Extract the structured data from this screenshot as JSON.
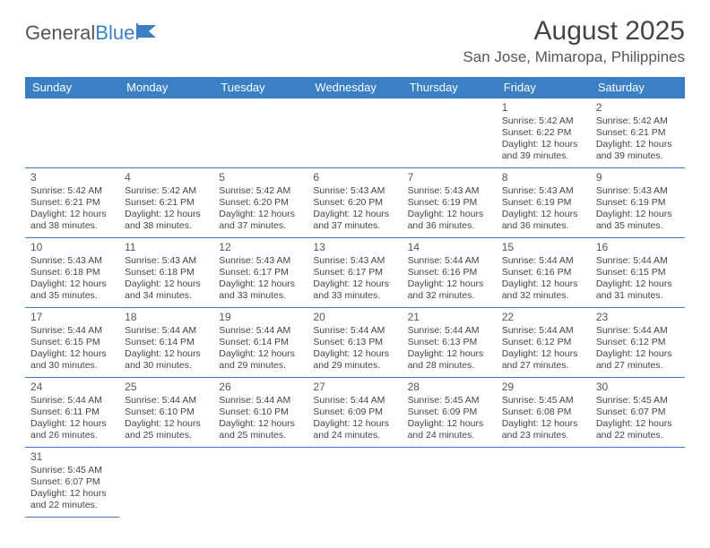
{
  "logo": {
    "text1": "General",
    "text2": "Blue"
  },
  "title": "August 2025",
  "location": "San Jose, Mimaropa, Philippines",
  "colors": {
    "header_bg": "#3b7fc4",
    "header_text": "#ffffff",
    "border": "#3b7fc4",
    "body_text": "#444444",
    "title_text": "#444444",
    "background": "#ffffff"
  },
  "typography": {
    "title_fontsize": 30,
    "location_fontsize": 17,
    "dayheader_fontsize": 13,
    "daynum_fontsize": 12,
    "cell_fontsize": 10.5,
    "logo_fontsize": 22
  },
  "day_headers": [
    "Sunday",
    "Monday",
    "Tuesday",
    "Wednesday",
    "Thursday",
    "Friday",
    "Saturday"
  ],
  "weeks": [
    [
      null,
      null,
      null,
      null,
      null,
      {
        "n": "1",
        "sunrise": "Sunrise: 5:42 AM",
        "sunset": "Sunset: 6:22 PM",
        "daylight": "Daylight: 12 hours and 39 minutes."
      },
      {
        "n": "2",
        "sunrise": "Sunrise: 5:42 AM",
        "sunset": "Sunset: 6:21 PM",
        "daylight": "Daylight: 12 hours and 39 minutes."
      }
    ],
    [
      {
        "n": "3",
        "sunrise": "Sunrise: 5:42 AM",
        "sunset": "Sunset: 6:21 PM",
        "daylight": "Daylight: 12 hours and 38 minutes."
      },
      {
        "n": "4",
        "sunrise": "Sunrise: 5:42 AM",
        "sunset": "Sunset: 6:21 PM",
        "daylight": "Daylight: 12 hours and 38 minutes."
      },
      {
        "n": "5",
        "sunrise": "Sunrise: 5:42 AM",
        "sunset": "Sunset: 6:20 PM",
        "daylight": "Daylight: 12 hours and 37 minutes."
      },
      {
        "n": "6",
        "sunrise": "Sunrise: 5:43 AM",
        "sunset": "Sunset: 6:20 PM",
        "daylight": "Daylight: 12 hours and 37 minutes."
      },
      {
        "n": "7",
        "sunrise": "Sunrise: 5:43 AM",
        "sunset": "Sunset: 6:19 PM",
        "daylight": "Daylight: 12 hours and 36 minutes."
      },
      {
        "n": "8",
        "sunrise": "Sunrise: 5:43 AM",
        "sunset": "Sunset: 6:19 PM",
        "daylight": "Daylight: 12 hours and 36 minutes."
      },
      {
        "n": "9",
        "sunrise": "Sunrise: 5:43 AM",
        "sunset": "Sunset: 6:19 PM",
        "daylight": "Daylight: 12 hours and 35 minutes."
      }
    ],
    [
      {
        "n": "10",
        "sunrise": "Sunrise: 5:43 AM",
        "sunset": "Sunset: 6:18 PM",
        "daylight": "Daylight: 12 hours and 35 minutes."
      },
      {
        "n": "11",
        "sunrise": "Sunrise: 5:43 AM",
        "sunset": "Sunset: 6:18 PM",
        "daylight": "Daylight: 12 hours and 34 minutes."
      },
      {
        "n": "12",
        "sunrise": "Sunrise: 5:43 AM",
        "sunset": "Sunset: 6:17 PM",
        "daylight": "Daylight: 12 hours and 33 minutes."
      },
      {
        "n": "13",
        "sunrise": "Sunrise: 5:43 AM",
        "sunset": "Sunset: 6:17 PM",
        "daylight": "Daylight: 12 hours and 33 minutes."
      },
      {
        "n": "14",
        "sunrise": "Sunrise: 5:44 AM",
        "sunset": "Sunset: 6:16 PM",
        "daylight": "Daylight: 12 hours and 32 minutes."
      },
      {
        "n": "15",
        "sunrise": "Sunrise: 5:44 AM",
        "sunset": "Sunset: 6:16 PM",
        "daylight": "Daylight: 12 hours and 32 minutes."
      },
      {
        "n": "16",
        "sunrise": "Sunrise: 5:44 AM",
        "sunset": "Sunset: 6:15 PM",
        "daylight": "Daylight: 12 hours and 31 minutes."
      }
    ],
    [
      {
        "n": "17",
        "sunrise": "Sunrise: 5:44 AM",
        "sunset": "Sunset: 6:15 PM",
        "daylight": "Daylight: 12 hours and 30 minutes."
      },
      {
        "n": "18",
        "sunrise": "Sunrise: 5:44 AM",
        "sunset": "Sunset: 6:14 PM",
        "daylight": "Daylight: 12 hours and 30 minutes."
      },
      {
        "n": "19",
        "sunrise": "Sunrise: 5:44 AM",
        "sunset": "Sunset: 6:14 PM",
        "daylight": "Daylight: 12 hours and 29 minutes."
      },
      {
        "n": "20",
        "sunrise": "Sunrise: 5:44 AM",
        "sunset": "Sunset: 6:13 PM",
        "daylight": "Daylight: 12 hours and 29 minutes."
      },
      {
        "n": "21",
        "sunrise": "Sunrise: 5:44 AM",
        "sunset": "Sunset: 6:13 PM",
        "daylight": "Daylight: 12 hours and 28 minutes."
      },
      {
        "n": "22",
        "sunrise": "Sunrise: 5:44 AM",
        "sunset": "Sunset: 6:12 PM",
        "daylight": "Daylight: 12 hours and 27 minutes."
      },
      {
        "n": "23",
        "sunrise": "Sunrise: 5:44 AM",
        "sunset": "Sunset: 6:12 PM",
        "daylight": "Daylight: 12 hours and 27 minutes."
      }
    ],
    [
      {
        "n": "24",
        "sunrise": "Sunrise: 5:44 AM",
        "sunset": "Sunset: 6:11 PM",
        "daylight": "Daylight: 12 hours and 26 minutes."
      },
      {
        "n": "25",
        "sunrise": "Sunrise: 5:44 AM",
        "sunset": "Sunset: 6:10 PM",
        "daylight": "Daylight: 12 hours and 25 minutes."
      },
      {
        "n": "26",
        "sunrise": "Sunrise: 5:44 AM",
        "sunset": "Sunset: 6:10 PM",
        "daylight": "Daylight: 12 hours and 25 minutes."
      },
      {
        "n": "27",
        "sunrise": "Sunrise: 5:44 AM",
        "sunset": "Sunset: 6:09 PM",
        "daylight": "Daylight: 12 hours and 24 minutes."
      },
      {
        "n": "28",
        "sunrise": "Sunrise: 5:45 AM",
        "sunset": "Sunset: 6:09 PM",
        "daylight": "Daylight: 12 hours and 24 minutes."
      },
      {
        "n": "29",
        "sunrise": "Sunrise: 5:45 AM",
        "sunset": "Sunset: 6:08 PM",
        "daylight": "Daylight: 12 hours and 23 minutes."
      },
      {
        "n": "30",
        "sunrise": "Sunrise: 5:45 AM",
        "sunset": "Sunset: 6:07 PM",
        "daylight": "Daylight: 12 hours and 22 minutes."
      }
    ],
    [
      {
        "n": "31",
        "sunrise": "Sunrise: 5:45 AM",
        "sunset": "Sunset: 6:07 PM",
        "daylight": "Daylight: 12 hours and 22 minutes."
      },
      null,
      null,
      null,
      null,
      null,
      null
    ]
  ]
}
